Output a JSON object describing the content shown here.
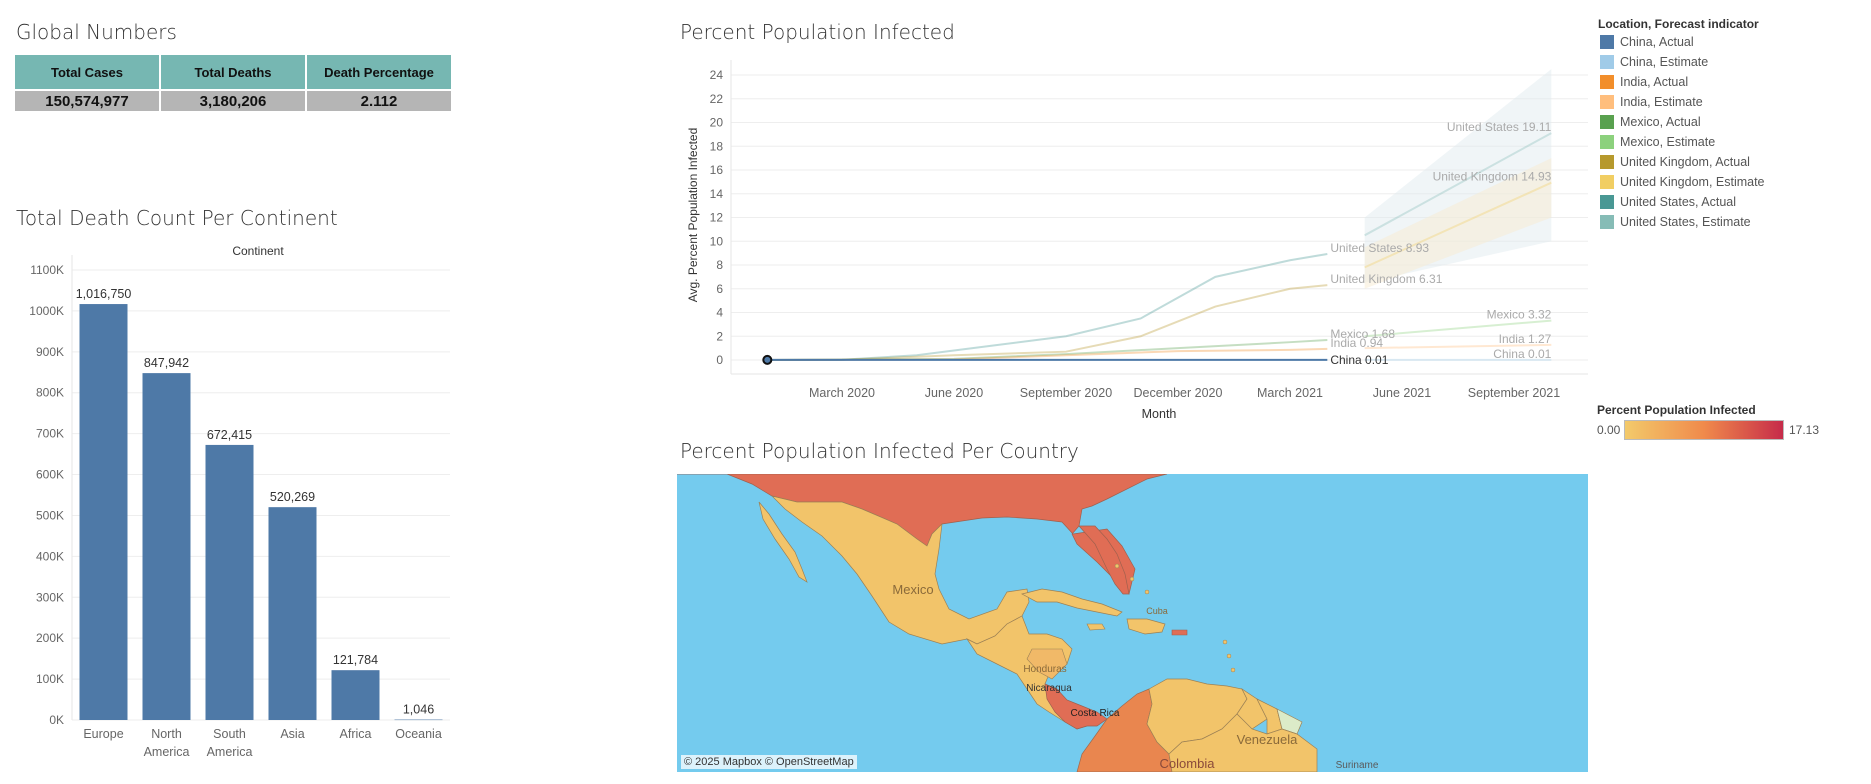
{
  "global_numbers": {
    "title": "Global Numbers",
    "headers": [
      "Total Cases",
      "Total Deaths",
      "Death Percentage"
    ],
    "values": [
      "150,574,977",
      "3,180,206",
      "2.112"
    ]
  },
  "death_chart": {
    "title": "Total Death Count Per Continent",
    "header": "Continent",
    "y_ticks": [
      "1100K",
      "1000K",
      "900K",
      "800K",
      "700K",
      "600K",
      "500K",
      "400K",
      "300K",
      "200K",
      "100K",
      "0K"
    ]
  },
  "line_chart": {
    "title": "Percent  Population Infected",
    "y_ticks": [
      "24",
      "22",
      "20",
      "18",
      "16",
      "14",
      "12",
      "10",
      "8",
      "6",
      "4",
      "2",
      "0"
    ]
  },
  "legend": {
    "title": "Location, Forecast indicator",
    "items": [
      {
        "label": "China, Actual",
        "color": "#4e79a7"
      },
      {
        "label": "China, Estimate",
        "color": "#a0cbe8"
      },
      {
        "label": "India, Actual",
        "color": "#f28e2b"
      },
      {
        "label": "India, Estimate",
        "color": "#ffbe7d"
      },
      {
        "label": "Mexico, Actual",
        "color": "#59a14f"
      },
      {
        "label": "Mexico, Estimate",
        "color": "#8cd17d"
      },
      {
        "label": "United Kingdom, Actual",
        "color": "#b6992d"
      },
      {
        "label": "United Kingdom, Estimate",
        "color": "#f1ce63"
      },
      {
        "label": "United States, Actual",
        "color": "#499894"
      },
      {
        "label": "United States, Estimate",
        "color": "#86bcb6"
      }
    ]
  },
  "color_scale": {
    "title": "Percent Population Infected",
    "min_label": "0.00",
    "max_label": "17.13",
    "min_color": "#f3ca6b",
    "max_color": "#c62b4a"
  },
  "map": {
    "title": "Percent Population Infected Per Country",
    "attribution": "© 2025 Mapbox © OpenStreetMap",
    "labels": [
      "Mexico",
      "Honduras",
      "Nicaragua",
      "Costa Rica",
      "Venezuela",
      "Colombia",
      "Suriname",
      "Cuba"
    ]
  },
  "chart_data": [
    {
      "type": "bar",
      "title": "Total Death Count Per Continent",
      "xlabel": "Continent",
      "ylabel": "",
      "categories": [
        "Europe",
        "North America",
        "South America",
        "Asia",
        "Africa",
        "Oceania"
      ],
      "category_lines": [
        [
          "Europe"
        ],
        [
          "North",
          "America"
        ],
        [
          "South",
          "America"
        ],
        [
          "Asia"
        ],
        [
          "Africa"
        ],
        [
          "Oceania"
        ]
      ],
      "values": [
        1016750,
        847942,
        672415,
        520269,
        121784,
        1046
      ],
      "value_labels": [
        "1,016,750",
        "847,942",
        "672,415",
        "520,269",
        "121,784",
        "1,046"
      ],
      "ylim": [
        0,
        1100000
      ],
      "bar_color": "#4e79a7",
      "grid": true
    },
    {
      "type": "line",
      "title": "Percent  Population Infected",
      "xlabel": "Month",
      "ylabel": "Avg. Percent Population Infected",
      "x_tick_labels": [
        "March 2020",
        "June 2020",
        "September 2020",
        "December 2020",
        "March 2021",
        "June 2021",
        "September 2021"
      ],
      "ylim": [
        0,
        25
      ],
      "grid": true,
      "series": [
        {
          "name": "United States, Actual",
          "end_label": "United States 8.93",
          "points": [
            [
              "2020-01",
              0
            ],
            [
              "2020-03",
              0.02
            ],
            [
              "2020-05",
              0.4
            ],
            [
              "2020-07",
              1.2
            ],
            [
              "2020-09",
              2.0
            ],
            [
              "2020-11",
              3.5
            ],
            [
              "2021-01",
              7.0
            ],
            [
              "2021-03",
              8.4
            ],
            [
              "2021-04",
              8.93
            ]
          ]
        },
        {
          "name": "United Kingdom, Actual",
          "end_label": "United Kingdom 6.31",
          "points": [
            [
              "2020-01",
              0
            ],
            [
              "2020-03",
              0.02
            ],
            [
              "2020-06",
              0.4
            ],
            [
              "2020-09",
              0.7
            ],
            [
              "2020-11",
              2.0
            ],
            [
              "2021-01",
              4.5
            ],
            [
              "2021-03",
              6.0
            ],
            [
              "2021-04",
              6.31
            ]
          ]
        },
        {
          "name": "Mexico, Actual",
          "end_label": "Mexico 1.68",
          "points": [
            [
              "2020-01",
              0
            ],
            [
              "2020-06",
              0.1
            ],
            [
              "2020-09",
              0.5
            ],
            [
              "2020-12",
              1.0
            ],
            [
              "2021-03",
              1.5
            ],
            [
              "2021-04",
              1.68
            ]
          ]
        },
        {
          "name": "India, Actual",
          "end_label": "India 0.94",
          "points": [
            [
              "2020-01",
              0
            ],
            [
              "2020-06",
              0.05
            ],
            [
              "2020-09",
              0.4
            ],
            [
              "2020-12",
              0.75
            ],
            [
              "2021-03",
              0.85
            ],
            [
              "2021-04",
              0.94
            ]
          ]
        },
        {
          "name": "China, Actual",
          "end_label": "China 0.01",
          "points": [
            [
              "2020-01",
              0.01
            ],
            [
              "2021-04",
              0.01
            ]
          ]
        },
        {
          "name": "United States, Estimate",
          "end_label": "United States 19.11",
          "points": [
            [
              "2021-05",
              10.5
            ],
            [
              "2021-10",
              19.11
            ]
          ]
        },
        {
          "name": "United Kingdom, Estimate",
          "end_label": "United Kingdom 14.93",
          "points": [
            [
              "2021-05",
              7.8
            ],
            [
              "2021-10",
              14.93
            ]
          ]
        },
        {
          "name": "Mexico, Estimate",
          "end_label": "Mexico 3.32",
          "points": [
            [
              "2021-05",
              2.0
            ],
            [
              "2021-10",
              3.32
            ]
          ]
        },
        {
          "name": "India, Estimate",
          "end_label": "India 1.27",
          "points": [
            [
              "2021-05",
              1.0
            ],
            [
              "2021-10",
              1.27
            ]
          ]
        },
        {
          "name": "China, Estimate",
          "end_label": "China 0.01",
          "points": [
            [
              "2021-05",
              0.01
            ],
            [
              "2021-10",
              0.01
            ]
          ]
        }
      ]
    }
  ]
}
